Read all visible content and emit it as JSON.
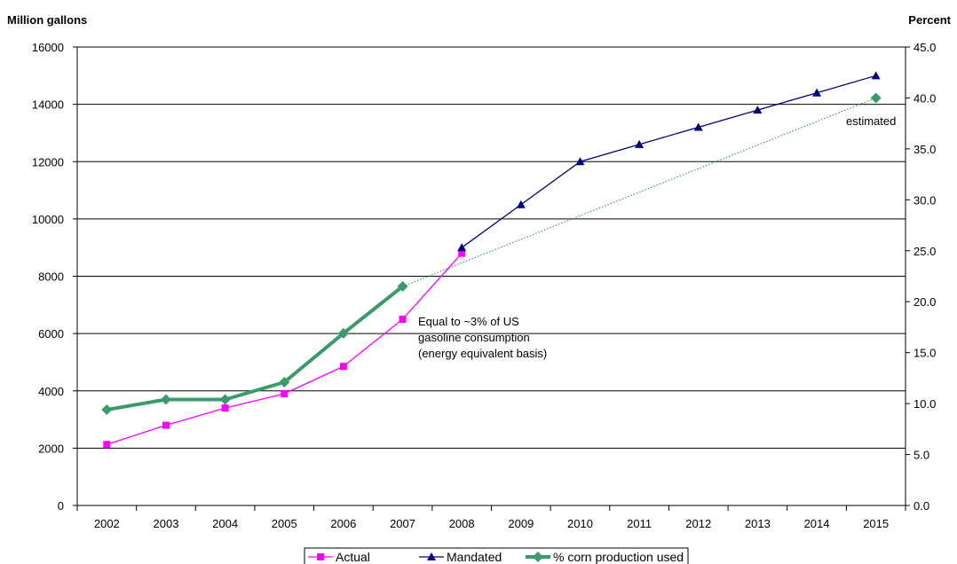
{
  "chart_data": {
    "type": "line",
    "title": "",
    "y_left_label": "Million gallons",
    "y_right_label": "Percent",
    "x": [
      "2002",
      "2003",
      "2004",
      "2005",
      "2006",
      "2007",
      "2008",
      "2009",
      "2010",
      "2011",
      "2012",
      "2013",
      "2014",
      "2015"
    ],
    "y_left_ticks": [
      "0",
      "2000",
      "4000",
      "6000",
      "8000",
      "10000",
      "12000",
      "14000",
      "16000"
    ],
    "y_right_ticks": [
      "0.0",
      "5.0",
      "10.0",
      "15.0",
      "20.0",
      "25.0",
      "30.0",
      "35.0",
      "40.0",
      "45.0"
    ],
    "ylim_left": [
      0,
      16000
    ],
    "ylim_right": [
      0,
      45
    ],
    "grid": "horizontal",
    "legend_position": "bottom",
    "series": [
      {
        "name": "Actual",
        "axis": "left",
        "color": "#ff00ff",
        "marker": "square",
        "x": [
          "2002",
          "2003",
          "2004",
          "2005",
          "2006",
          "2007",
          "2008"
        ],
        "values": [
          2130,
          2800,
          3400,
          3900,
          4855,
          6500,
          8800
        ]
      },
      {
        "name": "Mandated",
        "axis": "left",
        "color": "#000080",
        "marker": "triangle",
        "x": [
          "2008",
          "2009",
          "2010",
          "2011",
          "2012",
          "2013",
          "2014",
          "2015"
        ],
        "values": [
          9000,
          10500,
          12000,
          12600,
          13200,
          13800,
          14400,
          15000
        ]
      },
      {
        "name": "% corn production used",
        "axis": "right",
        "color": "#3a9a6a",
        "marker": "diamond",
        "x": [
          "2002",
          "2003",
          "2004",
          "2005",
          "2006",
          "2007"
        ],
        "values": [
          9.4,
          10.4,
          10.4,
          12.1,
          16.9,
          21.5
        ]
      }
    ],
    "estimate": {
      "axis": "right",
      "color": "#3a9a6a",
      "x": [
        "2007",
        "2015"
      ],
      "values": [
        21.5,
        40.0
      ],
      "label": "estimated"
    },
    "annotations": [
      {
        "text": "Equal to ~3% of US",
        "x": "2007",
        "y": 6500
      },
      {
        "text": "gasoline consumption",
        "x": "2007",
        "y": 6500
      },
      {
        "text": "(energy equivalent basis)",
        "x": "2007",
        "y": 6500
      }
    ]
  }
}
